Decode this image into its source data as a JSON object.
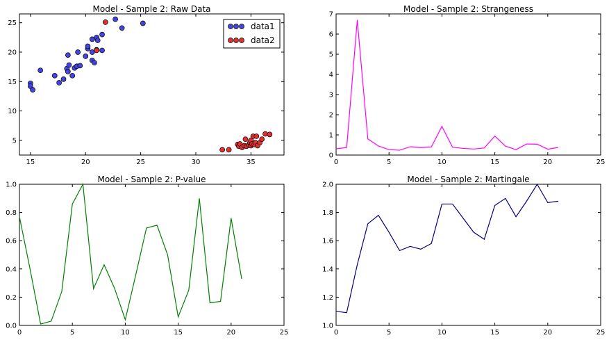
{
  "chart_data": [
    {
      "type": "scatter",
      "title": "Model - Sample 2: Raw Data",
      "xlim": [
        14,
        38
      ],
      "ylim": [
        2.5,
        26.5
      ],
      "xticks": [
        15,
        20,
        25,
        30,
        35
      ],
      "yticks": [
        5,
        10,
        15,
        20,
        25
      ],
      "legend": "top-right",
      "series": [
        {
          "name": "data1",
          "color": "#4444e0",
          "points": [
            [
              15.0,
              14.7
            ],
            [
              15.0,
              14.2
            ],
            [
              15.2,
              13.6
            ],
            [
              15.9,
              16.9
            ],
            [
              17.2,
              16.0
            ],
            [
              17.6,
              14.8
            ],
            [
              18.0,
              15.4
            ],
            [
              18.3,
              17.2
            ],
            [
              18.4,
              16.7
            ],
            [
              18.4,
              19.5
            ],
            [
              18.5,
              17.8
            ],
            [
              18.8,
              16.0
            ],
            [
              19.0,
              17.3
            ],
            [
              19.2,
              17.6
            ],
            [
              19.3,
              20.0
            ],
            [
              19.5,
              17.7
            ],
            [
              20.0,
              19.3
            ],
            [
              20.2,
              20.6
            ],
            [
              20.2,
              21.0
            ],
            [
              20.6,
              18.6
            ],
            [
              20.6,
              20.0
            ],
            [
              20.6,
              22.2
            ],
            [
              20.8,
              18.2
            ],
            [
              21.0,
              20.4
            ],
            [
              21.0,
              22.5
            ],
            [
              21.1,
              22.0
            ],
            [
              21.5,
              23.0
            ],
            [
              21.5,
              20.3
            ],
            [
              22.7,
              25.6
            ],
            [
              23.3,
              24.1
            ],
            [
              25.2,
              24.9
            ]
          ]
        },
        {
          "name": "data2",
          "color": "#e03030",
          "points": [
            [
              21.0,
              20.3
            ],
            [
              21.8,
              25.1
            ],
            [
              32.4,
              3.4
            ],
            [
              33.0,
              3.4
            ],
            [
              33.8,
              4.3
            ],
            [
              33.9,
              4.0
            ],
            [
              34.0,
              4.4
            ],
            [
              34.2,
              3.8
            ],
            [
              34.4,
              4.1
            ],
            [
              34.5,
              5.2
            ],
            [
              34.6,
              4.0
            ],
            [
              34.8,
              4.2
            ],
            [
              34.9,
              4.6
            ],
            [
              35.0,
              5.0
            ],
            [
              35.0,
              4.1
            ],
            [
              35.1,
              4.4
            ],
            [
              35.2,
              5.7
            ],
            [
              35.3,
              4.3
            ],
            [
              35.4,
              4.6
            ],
            [
              35.5,
              5.7
            ],
            [
              35.6,
              4.1
            ],
            [
              35.8,
              4.6
            ],
            [
              36.0,
              5.2
            ],
            [
              36.3,
              6.1
            ],
            [
              36.7,
              6.0
            ]
          ]
        }
      ]
    },
    {
      "type": "line",
      "title": "Model - Sample 2: Strangeness",
      "xlim": [
        0,
        25
      ],
      "ylim": [
        0,
        7
      ],
      "xticks": [
        0,
        5,
        10,
        15,
        20,
        25
      ],
      "yticks": [
        0,
        1,
        2,
        3,
        4,
        5,
        6,
        7
      ],
      "ytick_labels": [
        "0",
        "1",
        "2",
        "3",
        "4",
        "5",
        "6",
        "7"
      ],
      "color": "#ff00ff",
      "x": [
        0,
        1,
        2,
        3,
        4,
        5,
        6,
        7,
        8,
        9,
        10,
        11,
        12,
        13,
        14,
        15,
        16,
        17,
        18,
        19,
        20,
        21
      ],
      "y": [
        0.31,
        0.37,
        6.7,
        0.8,
        0.45,
        0.27,
        0.24,
        0.41,
        0.37,
        0.4,
        1.42,
        0.39,
        0.33,
        0.3,
        0.35,
        0.94,
        0.44,
        0.27,
        0.55,
        0.54,
        0.29,
        0.38
      ]
    },
    {
      "type": "line",
      "title": "Model - Sample 2: P-value",
      "xlim": [
        0,
        25
      ],
      "ylim": [
        0,
        1
      ],
      "xticks": [
        0,
        5,
        10,
        15,
        20,
        25
      ],
      "yticks": [
        0,
        0.2,
        0.4,
        0.6,
        0.8,
        1.0
      ],
      "ytick_labels": [
        "0.0",
        "0.2",
        "0.4",
        "0.6",
        "0.8",
        "1.0"
      ],
      "color": "#008000",
      "x": [
        0,
        1,
        2,
        3,
        4,
        5,
        6,
        7,
        8,
        9,
        10,
        11,
        12,
        13,
        14,
        15,
        16,
        17,
        18,
        19,
        20,
        21
      ],
      "y": [
        0.77,
        0.4,
        0.01,
        0.03,
        0.24,
        0.86,
        1.0,
        0.26,
        0.43,
        0.26,
        0.04,
        0.36,
        0.69,
        0.71,
        0.5,
        0.06,
        0.25,
        0.9,
        0.16,
        0.17,
        0.76,
        0.33
      ]
    },
    {
      "type": "line",
      "title": "Model - Sample 2: Martingale",
      "xlim": [
        0,
        25
      ],
      "ylim": [
        1,
        2
      ],
      "xticks": [
        0,
        5,
        10,
        15,
        20,
        25
      ],
      "yticks": [
        1.0,
        1.2,
        1.4,
        1.6,
        1.8,
        2.0
      ],
      "ytick_labels": [
        "1.0",
        "1.2",
        "1.4",
        "1.6",
        "1.8",
        "2.0"
      ],
      "color": "#000080",
      "x": [
        0,
        1,
        2,
        3,
        4,
        5,
        6,
        7,
        8,
        9,
        10,
        11,
        12,
        13,
        14,
        15,
        16,
        17,
        18,
        19,
        20,
        21
      ],
      "y": [
        1.1,
        1.09,
        1.43,
        1.72,
        1.78,
        1.66,
        1.53,
        1.56,
        1.54,
        1.58,
        1.86,
        1.86,
        1.76,
        1.66,
        1.61,
        1.85,
        1.9,
        1.77,
        1.88,
        2.0,
        1.87,
        1.88
      ]
    }
  ]
}
